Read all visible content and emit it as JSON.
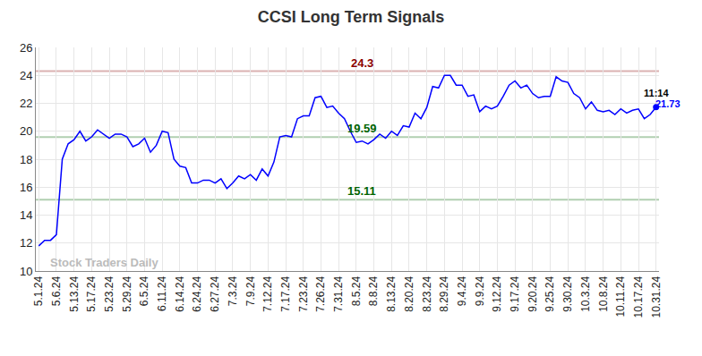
{
  "chart_data": {
    "type": "line",
    "title": "CCSI Long Term Signals",
    "categories": [
      "5.1.24",
      null,
      null,
      "5.6.24",
      null,
      null,
      "5.13.24",
      null,
      null,
      "5.17.24",
      null,
      null,
      "5.23.24",
      null,
      null,
      "5.29.24",
      null,
      null,
      "6.5.24",
      null,
      null,
      "6.11.24",
      null,
      null,
      "6.14.24",
      null,
      null,
      "6.24.24",
      null,
      null,
      "6.27.24",
      null,
      null,
      "7.3.24",
      null,
      null,
      "7.9.24",
      null,
      null,
      "7.12.24",
      null,
      null,
      "7.17.24",
      null,
      null,
      "7.23.24",
      null,
      null,
      "7.26.24",
      null,
      null,
      "7.31.24",
      null,
      null,
      "8.5.24",
      null,
      null,
      "8.8.24",
      null,
      null,
      "8.13.24",
      null,
      null,
      "8.20.24",
      null,
      null,
      "8.23.24",
      null,
      null,
      "8.29.24",
      null,
      null,
      "9.4.24",
      null,
      null,
      "9.9.24",
      null,
      null,
      "9.12.24",
      null,
      null,
      "9.17.24",
      null,
      null,
      "9.20.24",
      null,
      null,
      "9.25.24",
      null,
      null,
      "9.30.24",
      null,
      null,
      "10.3.24",
      null,
      null,
      "10.8.24",
      null,
      null,
      "10.11.24",
      null,
      null,
      "10.17.24",
      null,
      null,
      "10.31.24"
    ],
    "values": [
      11.8,
      12.2,
      12.2,
      12.6,
      18.0,
      19.1,
      19.4,
      20.0,
      19.3,
      19.6,
      20.1,
      19.8,
      19.5,
      19.8,
      19.8,
      19.6,
      18.9,
      19.1,
      19.5,
      18.5,
      19.0,
      20.0,
      19.9,
      18.0,
      17.5,
      17.4,
      16.3,
      16.3,
      16.5,
      16.5,
      16.3,
      16.6,
      15.9,
      16.3,
      16.8,
      16.6,
      16.9,
      16.5,
      17.3,
      16.8,
      17.8,
      19.6,
      19.7,
      19.6,
      20.9,
      21.1,
      21.1,
      22.4,
      22.5,
      21.7,
      21.8,
      21.3,
      20.9,
      20.0,
      19.2,
      19.3,
      19.1,
      19.4,
      19.8,
      19.5,
      20.0,
      19.7,
      20.4,
      20.3,
      21.3,
      20.9,
      21.7,
      23.2,
      23.1,
      24.0,
      24.0,
      23.3,
      23.3,
      22.5,
      22.6,
      21.4,
      21.8,
      21.6,
      21.8,
      22.5,
      23.3,
      23.6,
      23.1,
      23.3,
      22.7,
      22.4,
      22.5,
      22.5,
      23.9,
      23.6,
      23.5,
      22.7,
      22.4,
      21.6,
      22.1,
      21.5,
      21.4,
      21.5,
      21.2,
      21.6,
      21.3,
      21.5,
      21.6,
      20.9,
      21.2,
      21.73
    ],
    "color": "#0000ff",
    "ylim": [
      10,
      26
    ],
    "yticks": [
      10,
      12,
      14,
      16,
      18,
      20,
      22,
      24,
      26
    ],
    "grid": true,
    "levels": [
      {
        "value": 24.3,
        "label": "24.3",
        "color": "#8b0000"
      },
      {
        "value": 19.59,
        "label": "19.59",
        "color": "#006400"
      },
      {
        "value": 15.11,
        "label": "15.11",
        "color": "#006400"
      }
    ],
    "last_point": {
      "time": "11:14",
      "value": 21.73,
      "label": "21.73"
    },
    "watermark": "Stock Traders Daily"
  }
}
